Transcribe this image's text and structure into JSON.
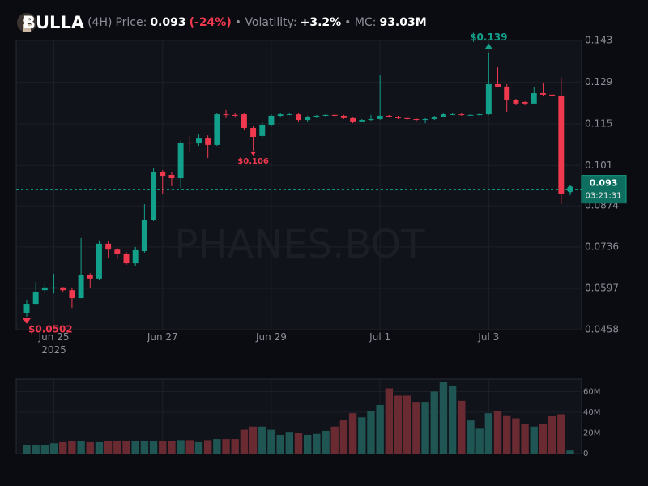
{
  "header": {
    "name": "BULLA",
    "interval": "(4H)",
    "price_label": "Price:",
    "price": "0.093",
    "change": "(-24%)",
    "volatility_label": "• Volatility:",
    "volatility": "+3.2%",
    "mc_label": "• MC:",
    "market_cap": "93.03M"
  },
  "watermark": "PHANES.BOT",
  "chart_data": [
    {
      "type": "candlestick",
      "up_color": "#12a08a",
      "down_color": "#f0384f",
      "grid": true,
      "categories": [
        null,
        null,
        null,
        "Jun 25\n2025",
        null,
        null,
        null,
        null,
        null,
        null,
        null,
        null,
        null,
        null,
        null,
        "Jun 27",
        null,
        null,
        null,
        null,
        null,
        null,
        null,
        null,
        null,
        null,
        null,
        "Jun 29",
        null,
        null,
        null,
        null,
        null,
        null,
        null,
        null,
        null,
        null,
        null,
        "Jul 1",
        null,
        null,
        null,
        null,
        null,
        null,
        null,
        null,
        null,
        null,
        null,
        "Jul 3",
        null,
        null,
        null,
        null,
        null,
        null,
        null,
        null,
        null
      ],
      "open": [
        0.0515,
        0.0545,
        0.0591,
        0.0597,
        0.06,
        0.0591,
        0.0564,
        0.0643,
        0.063,
        0.0747,
        0.0727,
        0.0714,
        0.0681,
        0.0722,
        0.0828,
        0.0989,
        0.0978,
        0.0967,
        0.1087,
        0.1084,
        0.1103,
        0.1079,
        0.1182,
        0.118,
        0.1182,
        0.1136,
        0.1109,
        0.1147,
        0.1177,
        0.1182,
        0.1182,
        0.1163,
        0.1174,
        0.1177,
        0.118,
        0.1177,
        0.1169,
        0.1158,
        0.1163,
        0.1166,
        0.1177,
        0.1174,
        0.1169,
        0.1166,
        0.1163,
        0.1166,
        0.1174,
        0.1182,
        0.1182,
        0.118,
        0.118,
        0.1182,
        0.1283,
        0.1275,
        0.1229,
        0.1223,
        0.1218,
        0.1253,
        0.1248,
        0.1245,
        0.0924
      ],
      "high": [
        0.0559,
        0.0619,
        0.0613,
        0.0646,
        0.0602,
        0.06,
        0.0766,
        0.0648,
        0.0758,
        0.0755,
        0.0733,
        0.0719,
        0.0736,
        0.088,
        0.1,
        0.0994,
        0.0989,
        0.1092,
        0.1109,
        0.1114,
        0.1111,
        0.1185,
        0.1196,
        0.1185,
        0.1188,
        0.1144,
        0.1158,
        0.1182,
        0.1185,
        0.1185,
        0.1185,
        0.1177,
        0.118,
        0.1182,
        0.1182,
        0.118,
        0.1171,
        0.1166,
        0.118,
        0.1313,
        0.118,
        0.1177,
        0.1174,
        0.1169,
        0.1169,
        0.1177,
        0.1185,
        0.1185,
        0.1185,
        0.1182,
        0.1185,
        0.139,
        0.134,
        0.1283,
        0.1234,
        0.1226,
        0.1272,
        0.1286,
        0.125,
        0.1305,
        0.0945
      ],
      "low": [
        0.0502,
        0.054,
        0.058,
        0.058,
        0.0583,
        0.0531,
        0.0564,
        0.06,
        0.0624,
        0.07,
        0.0695,
        0.0676,
        0.0673,
        0.0717,
        0.0823,
        0.0913,
        0.094,
        0.0934,
        0.1054,
        0.1076,
        0.1035,
        0.1076,
        0.1169,
        0.1171,
        0.113,
        0.106,
        0.1103,
        0.1141,
        0.1171,
        0.118,
        0.1155,
        0.1158,
        0.1169,
        0.1174,
        0.1171,
        0.1166,
        0.1152,
        0.1155,
        0.116,
        0.1163,
        0.1171,
        0.1166,
        0.1163,
        0.1158,
        0.1152,
        0.1163,
        0.1171,
        0.118,
        0.1177,
        0.1177,
        0.1177,
        0.118,
        0.1272,
        0.119,
        0.1212,
        0.1212,
        0.1218,
        0.1242,
        0.1242,
        0.088,
        0.091
      ],
      "close": [
        0.0545,
        0.0586,
        0.06,
        0.06,
        0.0591,
        0.0564,
        0.0643,
        0.063,
        0.0747,
        0.0727,
        0.0714,
        0.0681,
        0.0725,
        0.0828,
        0.0989,
        0.0975,
        0.0967,
        0.1087,
        0.1084,
        0.1103,
        0.1079,
        0.1182,
        0.118,
        0.1177,
        0.1136,
        0.1106,
        0.1147,
        0.1177,
        0.1182,
        0.1182,
        0.1163,
        0.1174,
        0.1177,
        0.118,
        0.1177,
        0.1169,
        0.1158,
        0.1163,
        0.1166,
        0.1177,
        0.1174,
        0.1169,
        0.1166,
        0.1163,
        0.1166,
        0.1174,
        0.1182,
        0.1182,
        0.118,
        0.118,
        0.1182,
        0.1283,
        0.1275,
        0.1229,
        0.1218,
        0.1218,
        0.1253,
        0.1248,
        0.1245,
        0.0915,
        0.093
      ],
      "ylim": [
        0.0458,
        0.143
      ],
      "yticks": [
        0.143,
        0.129,
        0.115,
        0.101,
        0.0874,
        0.0736,
        0.0597,
        0.0458
      ],
      "high_labels": [
        {
          "value": 0.139,
          "label": "$0.139"
        }
      ],
      "low_labels": [
        {
          "value": 0.106,
          "label": "$0.106"
        },
        {
          "value": 0.0502,
          "label": "$0.0502"
        }
      ],
      "last_price": {
        "value": 0.093,
        "label": "0.093"
      },
      "countdown": "03:21:31"
    },
    {
      "type": "bar",
      "up_color": "#1f5552",
      "down_color": "#6a2a32",
      "grid": true,
      "values": [
        8000000,
        8000000,
        8000000,
        10000000,
        11000000,
        12000000,
        12000000,
        11000000,
        11000000,
        12000000,
        12000000,
        12000000,
        12000000,
        12000000,
        12000000,
        12000000,
        12000000,
        13000000,
        13000000,
        11000000,
        13000000,
        14000000,
        14000000,
        14000000,
        23000000,
        26000000,
        26000000,
        23000000,
        18000000,
        21000000,
        20000000,
        18000000,
        19000000,
        22000000,
        26000000,
        32000000,
        39000000,
        35000000,
        41000000,
        47000000,
        63000000,
        56000000,
        56000000,
        50000000,
        50000000,
        60000000,
        69000000,
        65000000,
        51000000,
        32000000,
        24000000,
        39000000,
        41000000,
        37000000,
        34000000,
        29000000,
        26000000,
        29000000,
        36000000,
        38000000,
        3000000
      ],
      "ylim": [
        0,
        72000000
      ],
      "yticks": [
        0,
        {
          "value": 20000000,
          "label": "20M"
        },
        {
          "value": 40000000,
          "label": "40M"
        },
        {
          "value": 60000000,
          "label": "60M"
        }
      ]
    }
  ]
}
